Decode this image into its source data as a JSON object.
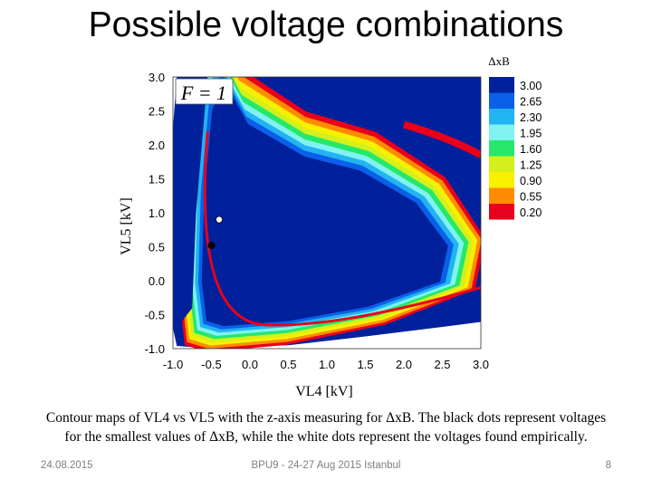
{
  "slide": {
    "title": "Possible voltage combinations",
    "caption_line1": "Contour maps of VL4 vs VL5 with the z-axis measuring for ΔxB. The black dots represent voltages",
    "caption_line2": "for the smallest values of ΔxB, while the white dots represent the voltages found empirically.",
    "footer_date": "24.08.2015",
    "footer_event": "BPU9 - 24-27 Aug 2015 Istanbul",
    "footer_page": "8"
  },
  "chart_data": {
    "type": "heatmap",
    "annotation": "F = 1",
    "xlabel": "VL4 [kV]",
    "ylabel": "VL5 [kV]",
    "colorbar_title": "ΔxB",
    "xlim": [
      -1.0,
      3.0
    ],
    "ylim": [
      -1.0,
      3.0
    ],
    "x_ticks": [
      "-1.0",
      "-0.5",
      "0.0",
      "0.5",
      "1.0",
      "1.5",
      "2.0",
      "2.5",
      "3.0"
    ],
    "y_ticks": [
      "3.0",
      "2.5",
      "2.0",
      "1.5",
      "1.0",
      "0.5",
      "0.0",
      "-0.5",
      "-1.0"
    ],
    "levels": [
      {
        "label": "3.00",
        "color": "#00219b"
      },
      {
        "label": "2.65",
        "color": "#0a60e8"
      },
      {
        "label": "2.30",
        "color": "#22b3f2"
      },
      {
        "label": "1.95",
        "color": "#80f2f0"
      },
      {
        "label": "1.60",
        "color": "#25e86a"
      },
      {
        "label": "1.25",
        "color": "#d3f01c"
      },
      {
        "label": "0.90",
        "color": "#f7f000"
      },
      {
        "label": "0.55",
        "color": "#ff8c00"
      },
      {
        "label": "0.20",
        "color": "#e8001c"
      }
    ],
    "points": [
      {
        "name": "empirical",
        "x": -0.4,
        "y": 0.9,
        "color": "#ffffff"
      },
      {
        "name": "minimum",
        "x": -0.5,
        "y": 0.52,
        "color": "#000000"
      }
    ]
  }
}
